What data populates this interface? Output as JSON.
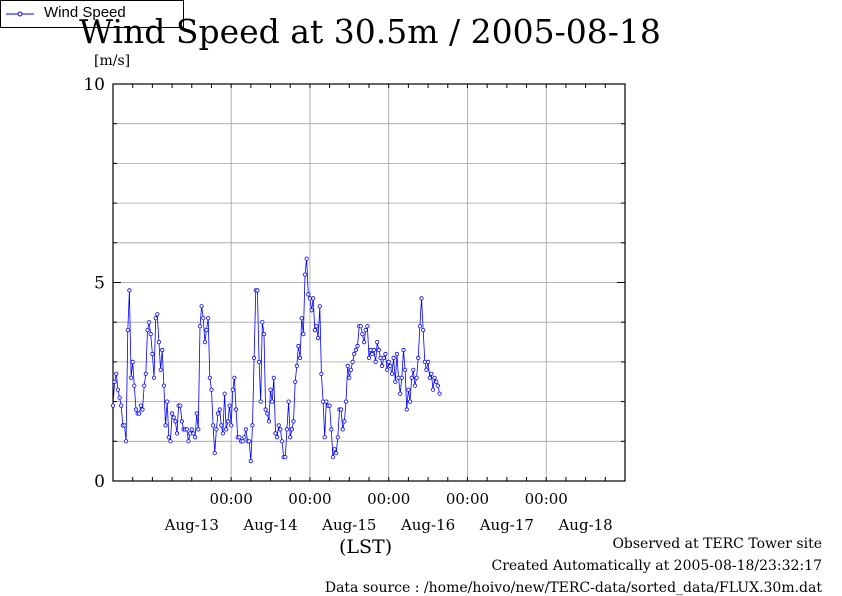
{
  "title": "Wind Speed at 30.5m / 2005-08-18",
  "unit_label": "[m/s]",
  "xaxis_label": "(LST)",
  "footer": {
    "line1": "Observed at TERC Tower site",
    "line2": "Created Automatically at 2005-08-18/23:32:17",
    "line3": "Data source : /home/hoivo/new/TERC-data/sorted_data/FLUX.30m.dat"
  },
  "colors": {
    "series": "#0000ff",
    "grid": "#a0a0a0",
    "axis": "#000000"
  },
  "chart_data": {
    "type": "line",
    "title": "Wind Speed at 30.5m / 2005-08-18",
    "ylabel": "[m/s]",
    "xlabel": "(LST)",
    "xlim": [
      "2005-08-12T12:00",
      "2005-08-19T00:00"
    ],
    "ylim": [
      0,
      10
    ],
    "yticks": [
      0,
      5,
      10
    ],
    "minor_y_step": 1,
    "grid": true,
    "legend_position": "right",
    "x_tick_labels": [
      {
        "time": "2005-08-13T12:00",
        "label": "Aug-13"
      },
      {
        "time": "2005-08-14T00:00",
        "label": "00:00"
      },
      {
        "time": "2005-08-14T12:00",
        "label": "Aug-14"
      },
      {
        "time": "2005-08-15T00:00",
        "label": "00:00"
      },
      {
        "time": "2005-08-15T12:00",
        "label": "Aug-15"
      },
      {
        "time": "2005-08-16T00:00",
        "label": "00:00"
      },
      {
        "time": "2005-08-16T12:00",
        "label": "Aug-16"
      },
      {
        "time": "2005-08-17T00:00",
        "label": "00:00"
      },
      {
        "time": "2005-08-17T12:00",
        "label": "Aug-17"
      },
      {
        "time": "2005-08-18T00:00",
        "label": "00:00"
      },
      {
        "time": "2005-08-18T12:00",
        "label": "Aug-18"
      }
    ],
    "series": [
      {
        "name": "Wind Speed",
        "color": "#0000ff",
        "interval_minutes": 30,
        "start": "2005-08-12T12:00",
        "values": [
          1.9,
          2.5,
          2.7,
          2.3,
          2.1,
          1.9,
          1.4,
          1.4,
          1.0,
          3.8,
          4.8,
          2.6,
          3.0,
          2.4,
          1.8,
          1.7,
          1.7,
          1.9,
          1.8,
          2.4,
          2.7,
          3.8,
          4.0,
          3.7,
          3.2,
          2.6,
          4.1,
          4.2,
          3.5,
          2.8,
          3.3,
          2.4,
          1.4,
          2.0,
          1.1,
          1.0,
          1.7,
          1.6,
          1.5,
          1.2,
          1.9,
          1.9,
          1.5,
          1.3,
          1.3,
          1.3,
          1.0,
          1.2,
          1.3,
          1.2,
          1.1,
          1.7,
          1.3,
          3.9,
          4.4,
          4.1,
          3.5,
          3.8,
          4.1,
          2.6,
          2.3,
          1.4,
          0.7,
          1.3,
          1.7,
          1.8,
          1.4,
          1.2,
          2.2,
          1.3,
          1.5,
          1.9,
          1.4,
          2.3,
          2.6,
          1.8,
          1.1,
          1.1,
          1.0,
          1.0,
          1.1,
          1.3,
          1.0,
          1.0,
          0.5,
          1.4,
          3.1,
          4.8,
          4.8,
          3.0,
          2.0,
          4.0,
          3.7,
          1.8,
          1.7,
          1.5,
          2.3,
          2.0,
          2.6,
          1.2,
          1.1,
          1.4,
          1.3,
          1.0,
          0.6,
          0.6,
          1.3,
          2.0,
          1.1,
          1.3,
          1.5,
          2.5,
          2.9,
          3.4,
          3.1,
          4.1,
          3.7,
          5.2,
          5.6,
          4.7,
          4.6,
          4.3,
          4.6,
          3.8,
          3.9,
          3.6,
          4.4,
          2.7,
          2.0,
          1.1,
          2.0,
          1.9,
          1.9,
          1.3,
          0.6,
          0.8,
          0.7,
          1.1,
          1.8,
          1.8,
          1.3,
          1.5,
          2.0,
          2.9,
          2.6,
          2.8,
          3.0,
          3.2,
          3.3,
          3.4,
          3.9,
          3.9,
          3.7,
          3.5,
          3.8,
          3.9,
          3.1,
          3.3,
          3.2,
          3.3,
          3.0,
          3.5,
          3.3,
          3.1,
          2.9,
          3.1,
          3.2,
          2.8,
          3.0,
          2.9,
          2.7,
          3.1,
          2.5,
          3.2,
          2.6,
          2.2,
          2.6,
          3.3,
          2.8,
          1.8,
          2.3,
          2.0,
          2.6,
          2.8,
          2.4,
          2.6,
          3.1,
          3.9,
          4.6,
          3.8,
          3.0,
          2.8,
          3.0,
          2.6,
          2.7,
          2.3,
          2.6,
          2.5,
          2.4,
          2.2
        ]
      }
    ]
  }
}
